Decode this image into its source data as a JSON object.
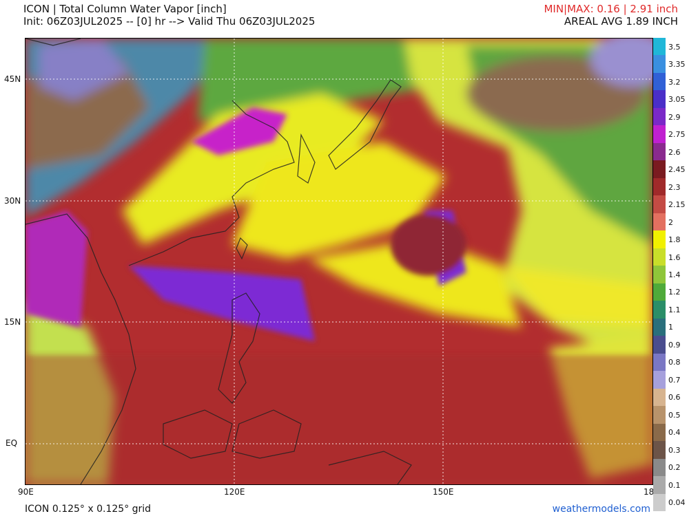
{
  "header": {
    "title": "ICON | Total Column Water Vapor [inch]",
    "subtitle": "Init: 06Z03JUL2025 -- [0] hr --> Valid Thu 06Z03JUL2025",
    "minmax": "MIN|MAX: 0.16 | 2.91 inch",
    "areal_avg": "AREAL AVG 1.89 INCH"
  },
  "axes": {
    "lat_labels": [
      "45N",
      "30N",
      "15N",
      "EQ"
    ],
    "lon_labels": [
      "90E",
      "120E",
      "150E",
      "18"
    ]
  },
  "colorbar": {
    "labels": [
      "3.5",
      "3.35",
      "3.2",
      "3.05",
      "2.9",
      "2.75",
      "2.6",
      "2.45",
      "2.3",
      "2.15",
      "2",
      "1.8",
      "1.6",
      "1.4",
      "1.2",
      "1.1",
      "1",
      "0.9",
      "0.8",
      "0.7",
      "0.6",
      "0.5",
      "0.4",
      "0.3",
      "0.2",
      "0.1",
      "0.04"
    ],
    "colors": [
      "#20b7d8",
      "#3a8fe0",
      "#3060d6",
      "#4a2fc8",
      "#7a29c8",
      "#c020d0",
      "#8a2a8e",
      "#7a1b20",
      "#a02a2a",
      "#c44b44",
      "#e37060",
      "#f1f000",
      "#c9de2a",
      "#8fc63a",
      "#4faa3a",
      "#2a8e68",
      "#2a6f7c",
      "#4a4d8e",
      "#7a77c4",
      "#a6a0dc",
      "#d7b48f",
      "#b8936b",
      "#8a6a4a",
      "#6c5448",
      "#8a8a8a",
      "#aaaaaa",
      "#cccccc"
    ]
  },
  "footer": {
    "grid": "ICON 0.125° x 0.125° grid",
    "site": "weathermodels.com"
  }
}
